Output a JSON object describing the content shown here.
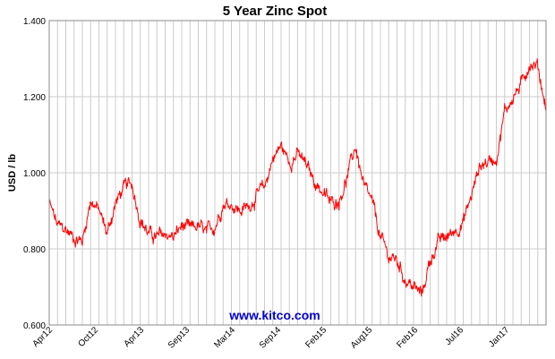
{
  "chart_data": {
    "type": "line",
    "title": "5 Year Zinc Spot",
    "ylabel": "USD / lb",
    "xlabel": "",
    "ylim": [
      0.6,
      1.4
    ],
    "yticks": [
      "0.600",
      "0.800",
      "1.000",
      "1.200",
      "1.400"
    ],
    "xticks": [
      "Apr12",
      "Oct12",
      "Apr13",
      "Sep13",
      "Mar14",
      "Sep14",
      "Feb15",
      "Aug15",
      "Feb16",
      "Jul16",
      "Jan17"
    ],
    "grid": true,
    "watermark": "www.kitco.com",
    "series": [
      {
        "color": "#ff0000",
        "x": [
          "2012-04",
          "2012-05",
          "2012-06",
          "2012-07",
          "2012-08",
          "2012-09",
          "2012-10",
          "2012-11",
          "2012-12",
          "2013-01",
          "2013-02",
          "2013-03",
          "2013-04",
          "2013-05",
          "2013-06",
          "2013-07",
          "2013-08",
          "2013-09",
          "2013-10",
          "2013-11",
          "2013-12",
          "2014-01",
          "2014-02",
          "2014-03",
          "2014-04",
          "2014-05",
          "2014-06",
          "2014-07",
          "2014-08",
          "2014-09",
          "2014-10",
          "2014-11",
          "2014-12",
          "2015-01",
          "2015-02",
          "2015-03",
          "2015-04",
          "2015-05",
          "2015-06",
          "2015-07",
          "2015-08",
          "2015-09",
          "2015-10",
          "2015-11",
          "2015-12",
          "2016-01",
          "2016-02",
          "2016-03",
          "2016-04",
          "2016-05",
          "2016-06",
          "2016-07",
          "2016-08",
          "2016-09",
          "2016-10",
          "2016-11",
          "2016-12",
          "2017-01",
          "2017-02",
          "2017-03",
          "2017-04"
        ],
        "values": [
          0.92,
          0.86,
          0.85,
          0.83,
          0.82,
          0.93,
          0.9,
          0.84,
          0.92,
          0.96,
          0.97,
          0.88,
          0.84,
          0.83,
          0.84,
          0.83,
          0.86,
          0.85,
          0.86,
          0.84,
          0.86,
          0.92,
          0.92,
          0.9,
          0.91,
          0.94,
          0.96,
          1.04,
          1.07,
          1.03,
          1.05,
          1.02,
          0.98,
          0.95,
          0.92,
          0.93,
          0.99,
          1.07,
          0.96,
          0.92,
          0.83,
          0.78,
          0.77,
          0.72,
          0.7,
          0.68,
          0.77,
          0.82,
          0.83,
          0.85,
          0.87,
          0.94,
          1.02,
          1.03,
          1.04,
          1.16,
          1.2,
          1.23,
          1.29,
          1.28,
          1.17
        ]
      }
    ]
  }
}
